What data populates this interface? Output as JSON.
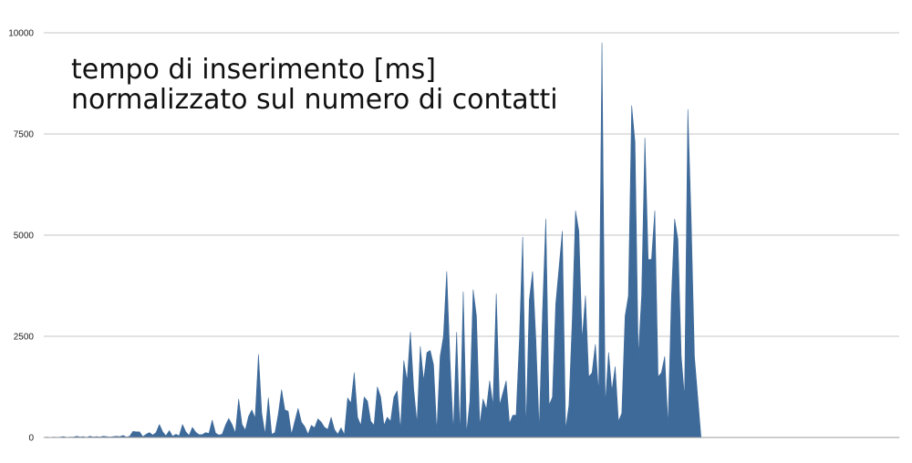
{
  "chart_data": {
    "type": "area",
    "title_lines": [
      "tempo di inserimento [ms]",
      "normalizzato sul numero di contatti"
    ],
    "ylim": [
      0,
      10000
    ],
    "ytick_labels": [
      "0",
      "2500",
      "5000",
      "7500",
      "10000"
    ],
    "ytick_values": [
      0,
      2500,
      5000,
      7500,
      10000
    ],
    "grid": true,
    "legend": "none",
    "colors": {
      "fill": "#3e6a9a",
      "grid": "#c6c6c6",
      "axis": "#9a9a9a"
    },
    "x_count": 260,
    "series": [
      {
        "values": [
          0,
          10,
          0,
          10,
          5,
          10,
          20,
          5,
          10,
          10,
          30,
          10,
          20,
          5,
          30,
          10,
          20,
          10,
          30,
          20,
          10,
          20,
          30,
          20,
          50,
          10,
          30,
          150,
          140,
          140,
          20,
          80,
          120,
          60,
          120,
          320,
          140,
          40,
          170,
          30,
          80,
          40,
          320,
          140,
          50,
          250,
          130,
          70,
          70,
          120,
          100,
          430,
          110,
          60,
          80,
          300,
          470,
          320,
          110,
          950,
          330,
          180,
          520,
          680,
          480,
          2050,
          600,
          80,
          980,
          80,
          120,
          580,
          1180,
          680,
          650,
          80,
          400,
          720,
          380,
          270,
          80,
          300,
          240,
          460,
          380,
          250,
          200,
          500,
          200,
          80,
          240,
          70,
          980,
          850,
          1600,
          500,
          300,
          1000,
          900,
          400,
          300,
          1250,
          1000,
          300,
          500,
          400,
          1000,
          1150,
          200,
          1900,
          1400,
          2600,
          1200,
          350,
          2250,
          1400,
          2100,
          2150,
          1800,
          150,
          2000,
          2500,
          4100,
          1900,
          150,
          2600,
          100,
          3600,
          100,
          900,
          3650,
          3000,
          300,
          950,
          700,
          1400,
          800,
          3550,
          800,
          1100,
          1400,
          350,
          550,
          550,
          2400,
          4950,
          200,
          3400,
          4100,
          2400,
          200,
          3100,
          5400,
          800,
          1000,
          3300,
          4200,
          5100,
          200,
          800,
          2900,
          5600,
          5100,
          2400,
          3500,
          1500,
          1600,
          2300,
          1100,
          9750,
          800,
          2100,
          1150,
          1750,
          400,
          600,
          3000,
          3500,
          8200,
          7300,
          2000,
          3500,
          7400,
          4400,
          4400,
          5600,
          1500,
          1600,
          2000,
          300,
          3400,
          5400,
          4900,
          2000,
          1000,
          8100,
          5400,
          2000,
          1000,
          0,
          0,
          0,
          0,
          0,
          0,
          0,
          0,
          0,
          0,
          0,
          0,
          0,
          0,
          0,
          0,
          0,
          0,
          0,
          0,
          0,
          0,
          0,
          0,
          0,
          0,
          0,
          0,
          0,
          0,
          0,
          0,
          0,
          0,
          0,
          0,
          0,
          0,
          0,
          0,
          0,
          0,
          0,
          0,
          0,
          0,
          0,
          0,
          0,
          0,
          0,
          0,
          0,
          0,
          0,
          0,
          0,
          0,
          0,
          0,
          0
        ]
      }
    ]
  }
}
